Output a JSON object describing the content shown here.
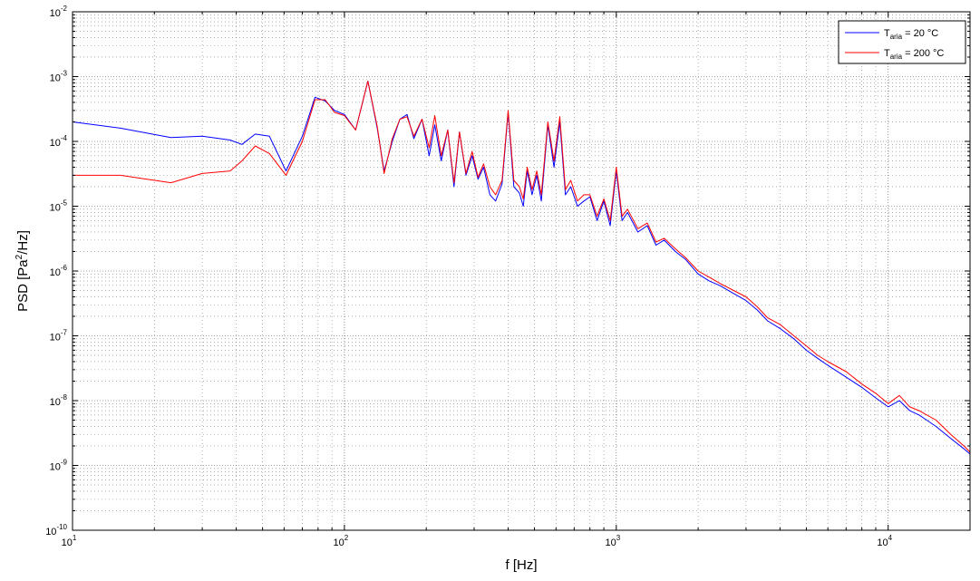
{
  "chart_data": {
    "type": "line",
    "xlabel": "f [Hz]",
    "ylabel_parts": [
      "PSD [Pa",
      "2",
      "/Hz]"
    ],
    "xscale": "log",
    "yscale": "log",
    "xlim": [
      10,
      20000
    ],
    "ylim": [
      1e-10,
      0.01
    ],
    "grid": true,
    "x_ticks": [
      {
        "base": "10",
        "exp": "1",
        "value": 10
      },
      {
        "base": "10",
        "exp": "2",
        "value": 100
      },
      {
        "base": "10",
        "exp": "3",
        "value": 1000
      },
      {
        "base": "10",
        "exp": "4",
        "value": 10000
      }
    ],
    "y_ticks": [
      {
        "base": "10",
        "exp": "-10",
        "value": 1e-10
      },
      {
        "base": "10",
        "exp": "-9",
        "value": 1e-09
      },
      {
        "base": "10",
        "exp": "-8",
        "value": 1e-08
      },
      {
        "base": "10",
        "exp": "-7",
        "value": 1e-07
      },
      {
        "base": "10",
        "exp": "-6",
        "value": 1e-06
      },
      {
        "base": "10",
        "exp": "-5",
        "value": 1e-05
      },
      {
        "base": "10",
        "exp": "-4",
        "value": 0.0001
      },
      {
        "base": "10",
        "exp": "-3",
        "value": 0.001
      },
      {
        "base": "10",
        "exp": "-2",
        "value": 0.01
      }
    ],
    "legend_position": "top-right",
    "series": [
      {
        "legend_main": "T",
        "legend_sub": "aria",
        "legend_rest": " = 20 °C",
        "color": "#0000ff",
        "x": [
          10,
          15,
          23,
          30,
          38,
          42,
          47,
          53,
          61,
          70,
          78,
          85,
          92,
          100,
          110,
          122,
          132,
          140,
          150,
          160,
          170,
          180,
          193,
          205,
          215,
          227,
          240,
          253,
          265,
          280,
          295,
          310,
          325,
          343,
          360,
          380,
          400,
          420,
          440,
          455,
          470,
          490,
          510,
          530,
          560,
          590,
          620,
          650,
          680,
          720,
          760,
          800,
          850,
          900,
          950,
          1000,
          1050,
          1100,
          1200,
          1300,
          1400,
          1500,
          1650,
          1800,
          2000,
          2200,
          2400,
          2700,
          3000,
          3300,
          3600,
          4000,
          4500,
          5000,
          5500,
          6000,
          7000,
          8000,
          9000,
          10000,
          11000,
          12000,
          13000,
          15000,
          17000,
          19000,
          20000
        ],
        "y": [
          0.0002,
          0.00016,
          0.000115,
          0.00012,
          0.000105,
          9e-05,
          0.00013,
          0.00012,
          3.5e-05,
          0.00012,
          0.00048,
          0.00042,
          0.0003,
          0.00026,
          0.00015,
          0.00085,
          0.00016,
          3.5e-05,
          0.0001,
          0.00022,
          0.00026,
          0.00011,
          0.00022,
          6e-05,
          0.00018,
          5e-05,
          0.00015,
          2e-05,
          0.00014,
          3e-05,
          6e-05,
          2.6e-05,
          4e-05,
          1.5e-05,
          1.2e-05,
          2.2e-05,
          0.00028,
          2e-05,
          1.6e-05,
          1e-05,
          3.5e-05,
          1.5e-05,
          3e-05,
          1.2e-05,
          0.00018,
          4e-05,
          0.0002,
          1.5e-05,
          2e-05,
          1e-05,
          1.2e-05,
          1.4e-05,
          6e-06,
          1.2e-05,
          5e-06,
          3.5e-05,
          6e-06,
          8e-06,
          4e-06,
          5e-06,
          2.5e-06,
          3e-06,
          2e-06,
          1.5e-06,
          9e-07,
          7e-07,
          6e-07,
          4.5e-07,
          3.5e-07,
          2.5e-07,
          1.7e-07,
          1.3e-07,
          9e-08,
          6e-08,
          4.5e-08,
          3.5e-08,
          2.3e-08,
          1.6e-08,
          1.1e-08,
          8e-09,
          1e-08,
          7e-09,
          6e-09,
          4e-09,
          2.6e-09,
          1.8e-09,
          1.5e-09
        ]
      },
      {
        "legend_main": "T",
        "legend_sub": "aria",
        "legend_rest": " = 200 °C",
        "color": "#ff0000",
        "x": [
          10,
          15,
          23,
          30,
          38,
          42,
          47,
          53,
          61,
          70,
          78,
          85,
          92,
          100,
          110,
          122,
          132,
          140,
          150,
          160,
          170,
          180,
          193,
          205,
          215,
          227,
          240,
          253,
          265,
          280,
          295,
          310,
          325,
          343,
          360,
          380,
          400,
          420,
          440,
          455,
          470,
          490,
          510,
          530,
          560,
          590,
          620,
          650,
          680,
          720,
          760,
          800,
          850,
          900,
          950,
          1000,
          1050,
          1100,
          1200,
          1300,
          1400,
          1500,
          1650,
          1800,
          2000,
          2200,
          2400,
          2700,
          3000,
          3300,
          3600,
          4000,
          4500,
          5000,
          5500,
          6000,
          7000,
          8000,
          9000,
          10000,
          11000,
          12000,
          13000,
          15000,
          17000,
          19000,
          20000
        ],
        "y": [
          3e-05,
          3e-05,
          2.3e-05,
          3.2e-05,
          3.5e-05,
          5e-05,
          8.5e-05,
          6.5e-05,
          3e-05,
          0.0001,
          0.00044,
          0.00044,
          0.00028,
          0.00025,
          0.00015,
          0.00085,
          0.00017,
          3.2e-05,
          0.00011,
          0.00022,
          0.00024,
          0.00012,
          0.00022,
          8e-05,
          0.00025,
          6e-05,
          0.00015,
          2.3e-05,
          0.00014,
          3.2e-05,
          7e-05,
          2.8e-05,
          4.5e-05,
          2e-05,
          1.5e-05,
          2.5e-05,
          0.0003,
          2.5e-05,
          2e-05,
          1.3e-05,
          4e-05,
          1.8e-05,
          3.5e-05,
          1.5e-05,
          0.0002,
          5e-05,
          0.00024,
          1.8e-05,
          2.5e-05,
          1.2e-05,
          1.5e-05,
          1.5e-05,
          7e-06,
          1.3e-05,
          6e-06,
          4e-05,
          7e-06,
          9e-06,
          4.5e-06,
          5.5e-06,
          2.8e-06,
          3.2e-06,
          2.2e-06,
          1.6e-06,
          1e-06,
          8e-07,
          6.5e-07,
          5e-07,
          4e-07,
          2.8e-07,
          1.9e-07,
          1.5e-07,
          1e-07,
          7e-08,
          5e-08,
          4e-08,
          2.8e-08,
          1.8e-08,
          1.3e-08,
          9e-09,
          1.2e-08,
          8e-09,
          7e-09,
          5e-09,
          3e-09,
          2e-09,
          1.6e-09
        ]
      }
    ]
  }
}
